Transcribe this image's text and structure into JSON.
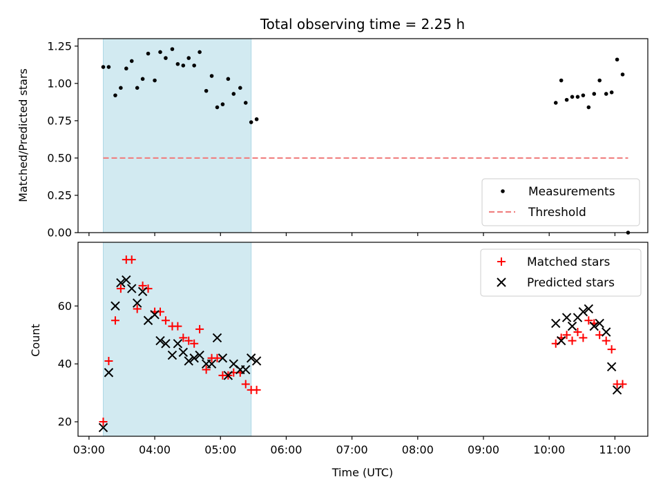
{
  "chart_data": [
    {
      "type": "scatter",
      "title": "Total observing time = 2.25 h",
      "xlabel": "",
      "ylabel": "Matched/Predicted stars",
      "ylim": [
        0,
        1.3
      ],
      "yticks": [
        "0.00",
        "0.25",
        "0.50",
        "0.75",
        "1.00",
        "1.25"
      ],
      "xlim": [
        "02:50",
        "11:30"
      ],
      "shaded_interval": [
        "03:13",
        "05:28"
      ],
      "shade_color": "#add8e6",
      "series": [
        {
          "name": "Measurements",
          "marker": "dot",
          "color": "#000000",
          "points": [
            [
              "03:13",
              1.11
            ],
            [
              "03:18",
              1.11
            ],
            [
              "03:24",
              0.92
            ],
            [
              "03:29",
              0.97
            ],
            [
              "03:34",
              1.1
            ],
            [
              "03:39",
              1.15
            ],
            [
              "03:44",
              0.97
            ],
            [
              "03:49",
              1.03
            ],
            [
              "03:54",
              1.2
            ],
            [
              "04:00",
              1.02
            ],
            [
              "04:05",
              1.21
            ],
            [
              "04:10",
              1.17
            ],
            [
              "04:16",
              1.23
            ],
            [
              "04:21",
              1.13
            ],
            [
              "04:26",
              1.12
            ],
            [
              "04:31",
              1.17
            ],
            [
              "04:36",
              1.12
            ],
            [
              "04:41",
              1.21
            ],
            [
              "04:47",
              0.95
            ],
            [
              "04:52",
              1.05
            ],
            [
              "04:57",
              0.84
            ],
            [
              "05:02",
              0.86
            ],
            [
              "05:07",
              1.03
            ],
            [
              "05:12",
              0.93
            ],
            [
              "05:18",
              0.97
            ],
            [
              "05:23",
              0.87
            ],
            [
              "05:28",
              0.74
            ],
            [
              "05:33",
              0.76
            ],
            [
              "10:06",
              0.87
            ],
            [
              "10:11",
              1.02
            ],
            [
              "10:16",
              0.89
            ],
            [
              "10:21",
              0.91
            ],
            [
              "10:26",
              0.91
            ],
            [
              "10:31",
              0.92
            ],
            [
              "10:36",
              0.84
            ],
            [
              "10:41",
              0.93
            ],
            [
              "10:46",
              1.02
            ],
            [
              "10:52",
              0.93
            ],
            [
              "10:57",
              0.94
            ],
            [
              "11:02",
              1.16
            ],
            [
              "11:07",
              1.06
            ],
            [
              "11:12",
              0.0
            ]
          ]
        },
        {
          "name": "Threshold",
          "marker": "dashed-line",
          "color": "#f08080",
          "points": [
            [
              "03:13",
              0.5
            ],
            [
              "11:12",
              0.5
            ]
          ]
        }
      ],
      "legend": "lower-right"
    },
    {
      "type": "scatter",
      "title": "",
      "xlabel": "Time (UTC)",
      "ylabel": "Count",
      "ylim": [
        15,
        82
      ],
      "yticks": [
        "20",
        "40",
        "60"
      ],
      "xlim": [
        "02:50",
        "11:30"
      ],
      "xticks": [
        "03:00",
        "04:00",
        "05:00",
        "06:00",
        "07:00",
        "08:00",
        "09:00",
        "10:00",
        "11:00"
      ],
      "shaded_interval": [
        "03:13",
        "05:28"
      ],
      "shade_color": "#add8e6",
      "series": [
        {
          "name": "Matched stars",
          "marker": "plus",
          "color": "#ff0000",
          "points": [
            [
              "03:13",
              20
            ],
            [
              "03:18",
              41
            ],
            [
              "03:24",
              55
            ],
            [
              "03:29",
              66
            ],
            [
              "03:34",
              76
            ],
            [
              "03:39",
              76
            ],
            [
              "03:44",
              59
            ],
            [
              "03:49",
              67
            ],
            [
              "03:54",
              66
            ],
            [
              "04:00",
              58
            ],
            [
              "04:05",
              58
            ],
            [
              "04:10",
              55
            ],
            [
              "04:16",
              53
            ],
            [
              "04:21",
              53
            ],
            [
              "04:26",
              49
            ],
            [
              "04:31",
              48
            ],
            [
              "04:36",
              47
            ],
            [
              "04:41",
              52
            ],
            [
              "04:47",
              38
            ],
            [
              "04:52",
              42
            ],
            [
              "04:57",
              42
            ],
            [
              "05:02",
              36
            ],
            [
              "05:07",
              36
            ],
            [
              "05:12",
              37
            ],
            [
              "05:18",
              37
            ],
            [
              "05:23",
              33
            ],
            [
              "05:28",
              31
            ],
            [
              "05:33",
              31
            ],
            [
              "10:06",
              47
            ],
            [
              "10:11",
              49
            ],
            [
              "10:16",
              50
            ],
            [
              "10:21",
              48
            ],
            [
              "10:26",
              51
            ],
            [
              "10:31",
              49
            ],
            [
              "10:36",
              55
            ],
            [
              "10:41",
              54
            ],
            [
              "10:46",
              50
            ],
            [
              "10:52",
              48
            ],
            [
              "10:57",
              45
            ],
            [
              "11:02",
              33
            ],
            [
              "11:07",
              33
            ]
          ]
        },
        {
          "name": "Predicted stars",
          "marker": "x",
          "color": "#000000",
          "points": [
            [
              "03:13",
              18
            ],
            [
              "03:18",
              37
            ],
            [
              "03:24",
              60
            ],
            [
              "03:29",
              68
            ],
            [
              "03:34",
              69
            ],
            [
              "03:39",
              66
            ],
            [
              "03:44",
              61
            ],
            [
              "03:49",
              65
            ],
            [
              "03:54",
              55
            ],
            [
              "04:00",
              57
            ],
            [
              "04:05",
              48
            ],
            [
              "04:10",
              47
            ],
            [
              "04:16",
              43
            ],
            [
              "04:21",
              47
            ],
            [
              "04:26",
              44
            ],
            [
              "04:31",
              41
            ],
            [
              "04:36",
              42
            ],
            [
              "04:41",
              43
            ],
            [
              "04:47",
              40
            ],
            [
              "04:52",
              40
            ],
            [
              "04:57",
              49
            ],
            [
              "05:02",
              42
            ],
            [
              "05:07",
              36
            ],
            [
              "05:12",
              40
            ],
            [
              "05:18",
              38
            ],
            [
              "05:23",
              38
            ],
            [
              "05:28",
              42
            ],
            [
              "05:33",
              41
            ],
            [
              "10:06",
              54
            ],
            [
              "10:11",
              48
            ],
            [
              "10:16",
              56
            ],
            [
              "10:21",
              53
            ],
            [
              "10:26",
              56
            ],
            [
              "10:31",
              58
            ],
            [
              "10:36",
              59
            ],
            [
              "10:41",
              53
            ],
            [
              "10:46",
              54
            ],
            [
              "10:52",
              51
            ],
            [
              "10:57",
              39
            ],
            [
              "11:02",
              31
            ]
          ]
        }
      ],
      "legend": "upper-right"
    }
  ]
}
